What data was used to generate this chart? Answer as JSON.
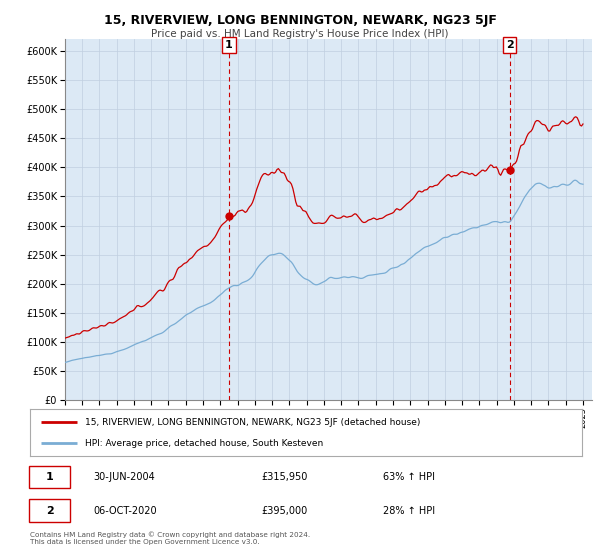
{
  "title": "15, RIVERVIEW, LONG BENNINGTON, NEWARK, NG23 5JF",
  "subtitle": "Price paid vs. HM Land Registry's House Price Index (HPI)",
  "legend_line1": "15, RIVERVIEW, LONG BENNINGTON, NEWARK, NG23 5JF (detached house)",
  "legend_line2": "HPI: Average price, detached house, South Kesteven",
  "annotation1_date": "30-JUN-2004",
  "annotation1_price": "£315,950",
  "annotation1_hpi": "63% ↑ HPI",
  "annotation2_date": "06-OCT-2020",
  "annotation2_price": "£395,000",
  "annotation2_hpi": "28% ↑ HPI",
  "footer": "Contains HM Land Registry data © Crown copyright and database right 2024.\nThis data is licensed under the Open Government Licence v3.0.",
  "red_color": "#cc0000",
  "blue_color": "#7aadd4",
  "background_color": "#dce9f5",
  "grid_color": "#c0cfe0",
  "sale1_year": 2004.5,
  "sale1_price": 315950,
  "sale2_year": 2020.75,
  "sale2_price": 395000
}
